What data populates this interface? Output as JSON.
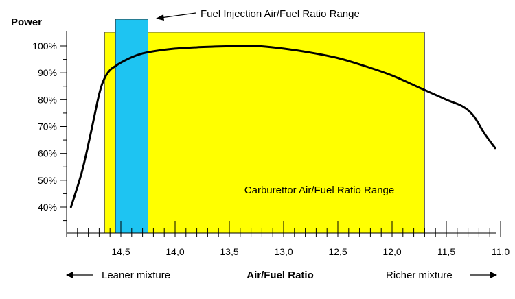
{
  "chart_data": {
    "type": "line",
    "title": "",
    "ylabel": "Power",
    "xlabel": "Air/Fuel Ratio",
    "x_reversed": true,
    "xlim": [
      15.0,
      11.0
    ],
    "ylim": [
      35,
      100
    ],
    "x_major_ticks": [
      "14,5",
      "14,0",
      "13,5",
      "13,0",
      "12,5",
      "12,0",
      "11,5",
      "11,0"
    ],
    "y_ticks": [
      "40%",
      "50%",
      "60%",
      "70%",
      "80%",
      "90%",
      "100%"
    ],
    "grid": false,
    "series": [
      {
        "name": "",
        "color": "#000000",
        "x": [
          14.96,
          14.86,
          14.78,
          14.7,
          14.65,
          14.6,
          14.55,
          14.5,
          14.4,
          14.3,
          14.2,
          14.0,
          13.8,
          13.6,
          13.4,
          13.25,
          13.0,
          12.75,
          12.5,
          12.25,
          12.0,
          11.75,
          11.5,
          11.35,
          11.25,
          11.15,
          11.05
        ],
        "y": [
          40,
          53,
          67,
          82,
          88,
          91,
          92.5,
          93.8,
          95.8,
          97.2,
          98.0,
          99.0,
          99.5,
          99.8,
          100,
          100,
          99,
          97.5,
          95.5,
          92.5,
          89,
          84.5,
          80,
          77.5,
          74,
          67.5,
          62
        ]
      }
    ],
    "ranges": [
      {
        "label": "Carburettor Air/Fuel Ratio Range",
        "x_from": 14.65,
        "x_to": 11.7,
        "color": "#ffff00"
      },
      {
        "label": "Fuel Injection Air/Fuel Ratio Range",
        "x_from": 14.55,
        "x_to": 14.25,
        "color": "#1ec4f2"
      }
    ],
    "annotations": {
      "leaner": "Leaner mixture",
      "richer": "Richer mixture"
    }
  }
}
